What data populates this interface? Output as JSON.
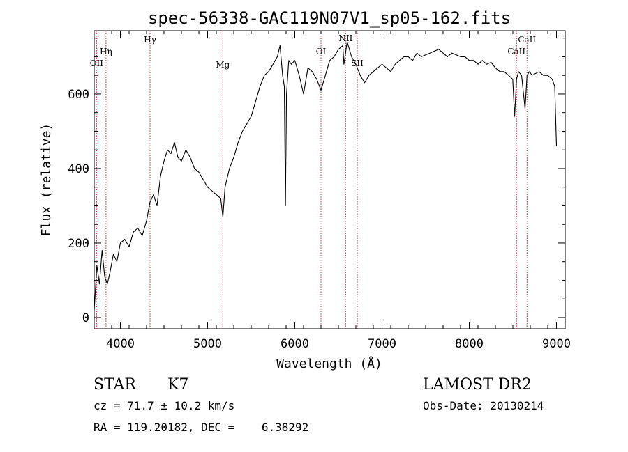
{
  "chart_data": {
    "type": "line",
    "title": "spec-56338-GAC119N07V1_sp05-162.fits",
    "xlabel": "Wavelength (Å)",
    "ylabel": "Flux (relative)",
    "xlim": [
      3700,
      9100
    ],
    "ylim": [
      -30,
      770
    ],
    "x_ticks": [
      4000,
      5000,
      6000,
      7000,
      8000,
      9000
    ],
    "y_ticks": [
      0,
      200,
      400,
      600
    ],
    "grid": false,
    "legend": "none",
    "series": [
      {
        "color": "#000000",
        "x": [
          3700,
          3730,
          3760,
          3790,
          3820,
          3850,
          3880,
          3920,
          3960,
          4000,
          4050,
          4100,
          4150,
          4200,
          4250,
          4300,
          4340,
          4380,
          4420,
          4460,
          4500,
          4540,
          4580,
          4620,
          4660,
          4700,
          4750,
          4800,
          4850,
          4900,
          4950,
          5000,
          5050,
          5100,
          5150,
          5175,
          5200,
          5250,
          5300,
          5350,
          5400,
          5450,
          5500,
          5550,
          5600,
          5650,
          5700,
          5750,
          5800,
          5830,
          5860,
          5880,
          5893,
          5905,
          5930,
          5960,
          6000,
          6050,
          6100,
          6150,
          6200,
          6250,
          6300,
          6350,
          6400,
          6450,
          6500,
          6550,
          6563,
          6600,
          6650,
          6700,
          6750,
          6800,
          6850,
          6900,
          6950,
          7000,
          7050,
          7100,
          7150,
          7200,
          7250,
          7300,
          7350,
          7400,
          7450,
          7500,
          7550,
          7600,
          7650,
          7700,
          7750,
          7800,
          7850,
          7900,
          7950,
          8000,
          8050,
          8100,
          8150,
          8200,
          8250,
          8300,
          8350,
          8400,
          8450,
          8498,
          8520,
          8542,
          8565,
          8600,
          8640,
          8662,
          8690,
          8720,
          8760,
          8800,
          8850,
          8900,
          8950,
          8980,
          9000
        ],
        "y": [
          20,
          140,
          90,
          180,
          110,
          90,
          120,
          170,
          150,
          200,
          210,
          190,
          230,
          240,
          220,
          260,
          310,
          330,
          300,
          380,
          420,
          450,
          440,
          470,
          430,
          420,
          450,
          430,
          400,
          390,
          370,
          350,
          340,
          330,
          320,
          270,
          350,
          400,
          430,
          470,
          500,
          520,
          540,
          580,
          620,
          650,
          660,
          680,
          700,
          730,
          650,
          620,
          300,
          600,
          690,
          680,
          690,
          650,
          600,
          670,
          660,
          640,
          610,
          650,
          690,
          700,
          720,
          730,
          680,
          740,
          700,
          680,
          650,
          630,
          650,
          660,
          670,
          680,
          670,
          660,
          680,
          690,
          700,
          700,
          690,
          710,
          700,
          705,
          710,
          715,
          720,
          710,
          700,
          710,
          705,
          700,
          700,
          690,
          690,
          680,
          690,
          680,
          685,
          670,
          660,
          660,
          650,
          640,
          540,
          640,
          660,
          650,
          560,
          650,
          660,
          650,
          655,
          660,
          650,
          650,
          640,
          620,
          460
        ]
      }
    ],
    "line_markers": [
      {
        "label": "OII",
        "x": 3727
      },
      {
        "label": "Hη",
        "x": 3835
      },
      {
        "label": "Hγ",
        "x": 4340
      },
      {
        "label": "Mg",
        "x": 5175
      },
      {
        "label": "OI",
        "x": 6300
      },
      {
        "label": "NII",
        "x": 6583
      },
      {
        "label": "SII",
        "x": 6716
      },
      {
        "label": "CaII",
        "x": 8542
      },
      {
        "label": "CaII",
        "x": 8662
      }
    ]
  },
  "info": {
    "object_class": "STAR",
    "subclass": "K7",
    "redshift_line": "cz = 71.7 ± 10.2 km/s",
    "coords_line": "RA = 119.20182, DEC =    6.38292",
    "survey": "LAMOST DR2",
    "obs_date_line": "Obs-Date: 20130214"
  }
}
